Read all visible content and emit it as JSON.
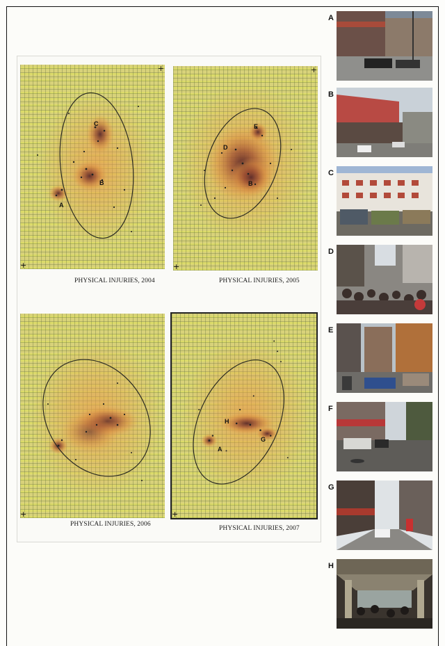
{
  "maps": [
    {
      "caption": "PHYSICAL INJURIES, 2004",
      "labels": [
        "C",
        "B",
        "A"
      ]
    },
    {
      "caption": "PHYSICAL INJURIES, 2005",
      "labels": [
        "E",
        "D",
        "B"
      ]
    },
    {
      "caption": "PHYSICAL INJURIES, 2006",
      "labels": []
    },
    {
      "caption": "PHYSICAL INJURIES, 2007",
      "labels": [
        "H",
        "A",
        "G"
      ]
    }
  ],
  "photos": [
    {
      "letter": "A",
      "scene": "street with parked cars"
    },
    {
      "letter": "B",
      "scene": "building with red roof and street"
    },
    {
      "letter": "C",
      "scene": "white building with jeepneys"
    },
    {
      "letter": "D",
      "scene": "crowded market street"
    },
    {
      "letter": "E",
      "scene": "street with buildings and traffic"
    },
    {
      "letter": "F",
      "scene": "street with shops and vehicles"
    },
    {
      "letter": "G",
      "scene": "narrow street with shops"
    },
    {
      "letter": "H",
      "scene": "area under elevated structure"
    }
  ],
  "map_corner_marks": [
    "+",
    "+"
  ]
}
